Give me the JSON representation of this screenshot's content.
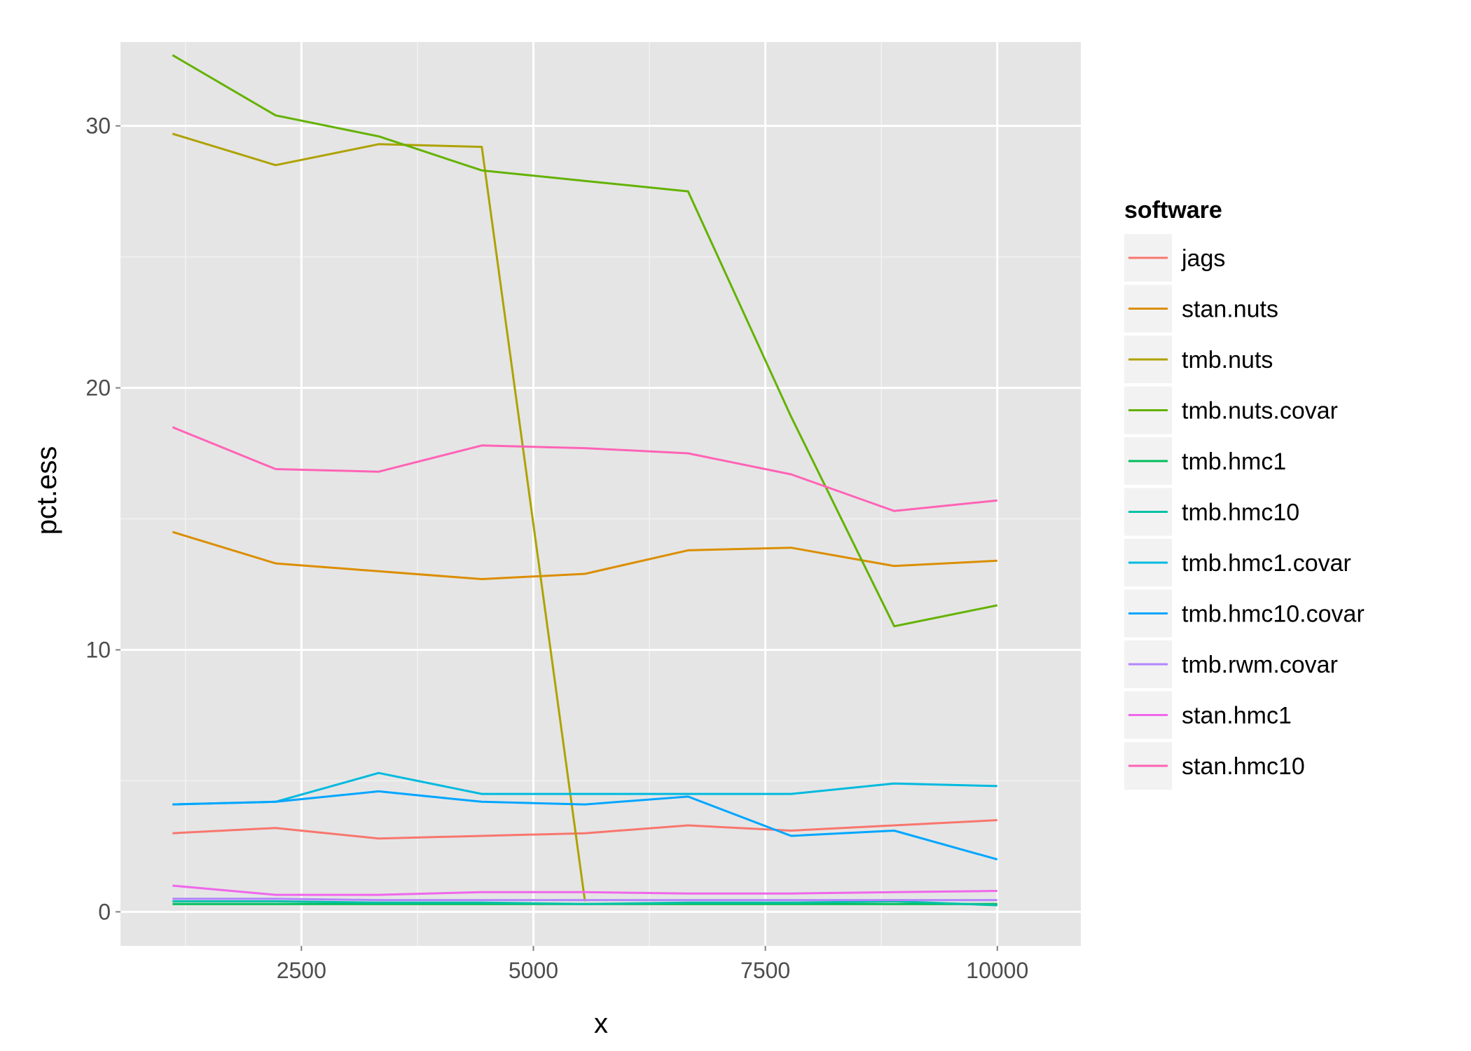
{
  "chart_data": {
    "type": "line",
    "xlabel": "x",
    "ylabel": "pct.ess",
    "xlim": [
      550,
      10900
    ],
    "ylim": [
      -1.3,
      33.2
    ],
    "xticks": [
      2500,
      5000,
      7500,
      10000
    ],
    "xtick_labels": [
      "2500",
      "5000",
      "7500",
      "10000"
    ],
    "yticks": [
      0,
      10,
      20,
      30
    ],
    "ytick_labels": [
      "0",
      "10",
      "20",
      "30"
    ],
    "grid": true,
    "legend": {
      "title": "software",
      "placement": "right"
    },
    "x": [
      1111,
      2222,
      3333,
      4444,
      5556,
      6667,
      7778,
      8889,
      10000
    ],
    "series": [
      {
        "name": "jags",
        "color": "#F8766D",
        "values": [
          3.0,
          3.2,
          2.8,
          2.9,
          3.0,
          3.3,
          3.1,
          3.3,
          3.5
        ]
      },
      {
        "name": "stan.nuts",
        "color": "#DB8E00",
        "values": [
          14.5,
          13.3,
          13.0,
          12.7,
          12.9,
          13.8,
          13.9,
          13.2,
          13.4
        ]
      },
      {
        "name": "tmb.nuts",
        "color": "#AEA200",
        "values": [
          29.7,
          28.5,
          29.3,
          29.2,
          0.4,
          null,
          null,
          null,
          null
        ]
      },
      {
        "name": "tmb.nuts.covar",
        "color": "#64B200",
        "values": [
          32.7,
          30.4,
          29.6,
          28.3,
          27.9,
          27.5,
          18.9,
          10.9,
          11.7
        ]
      },
      {
        "name": "tmb.hmc1",
        "color": "#00BD5C",
        "values": [
          0.3,
          0.3,
          0.3,
          0.3,
          0.3,
          0.3,
          0.3,
          0.3,
          0.3
        ]
      },
      {
        "name": "tmb.hmc10",
        "color": "#00C1A7",
        "values": [
          0.4,
          0.4,
          0.35,
          0.35,
          0.3,
          0.35,
          0.35,
          0.4,
          0.25
        ]
      },
      {
        "name": "tmb.hmc1.covar",
        "color": "#00BADE",
        "values": [
          4.1,
          4.2,
          5.3,
          4.5,
          4.5,
          4.5,
          4.5,
          4.9,
          4.8
        ]
      },
      {
        "name": "tmb.hmc10.covar",
        "color": "#00A6FF",
        "values": [
          4.1,
          4.2,
          4.6,
          4.2,
          4.1,
          4.4,
          2.9,
          3.1,
          2.0
        ]
      },
      {
        "name": "tmb.rwm.covar",
        "color": "#B385FF",
        "values": [
          0.5,
          0.5,
          0.45,
          0.45,
          0.45,
          0.45,
          0.45,
          0.45,
          0.45
        ]
      },
      {
        "name": "stan.hmc1",
        "color": "#EF67EB",
        "values": [
          1.0,
          0.65,
          0.65,
          0.75,
          0.75,
          0.7,
          0.7,
          0.75,
          0.8
        ]
      },
      {
        "name": "stan.hmc10",
        "color": "#FF63B6",
        "values": [
          18.5,
          16.9,
          16.8,
          17.8,
          17.7,
          17.5,
          16.7,
          15.3,
          15.7
        ]
      }
    ]
  }
}
